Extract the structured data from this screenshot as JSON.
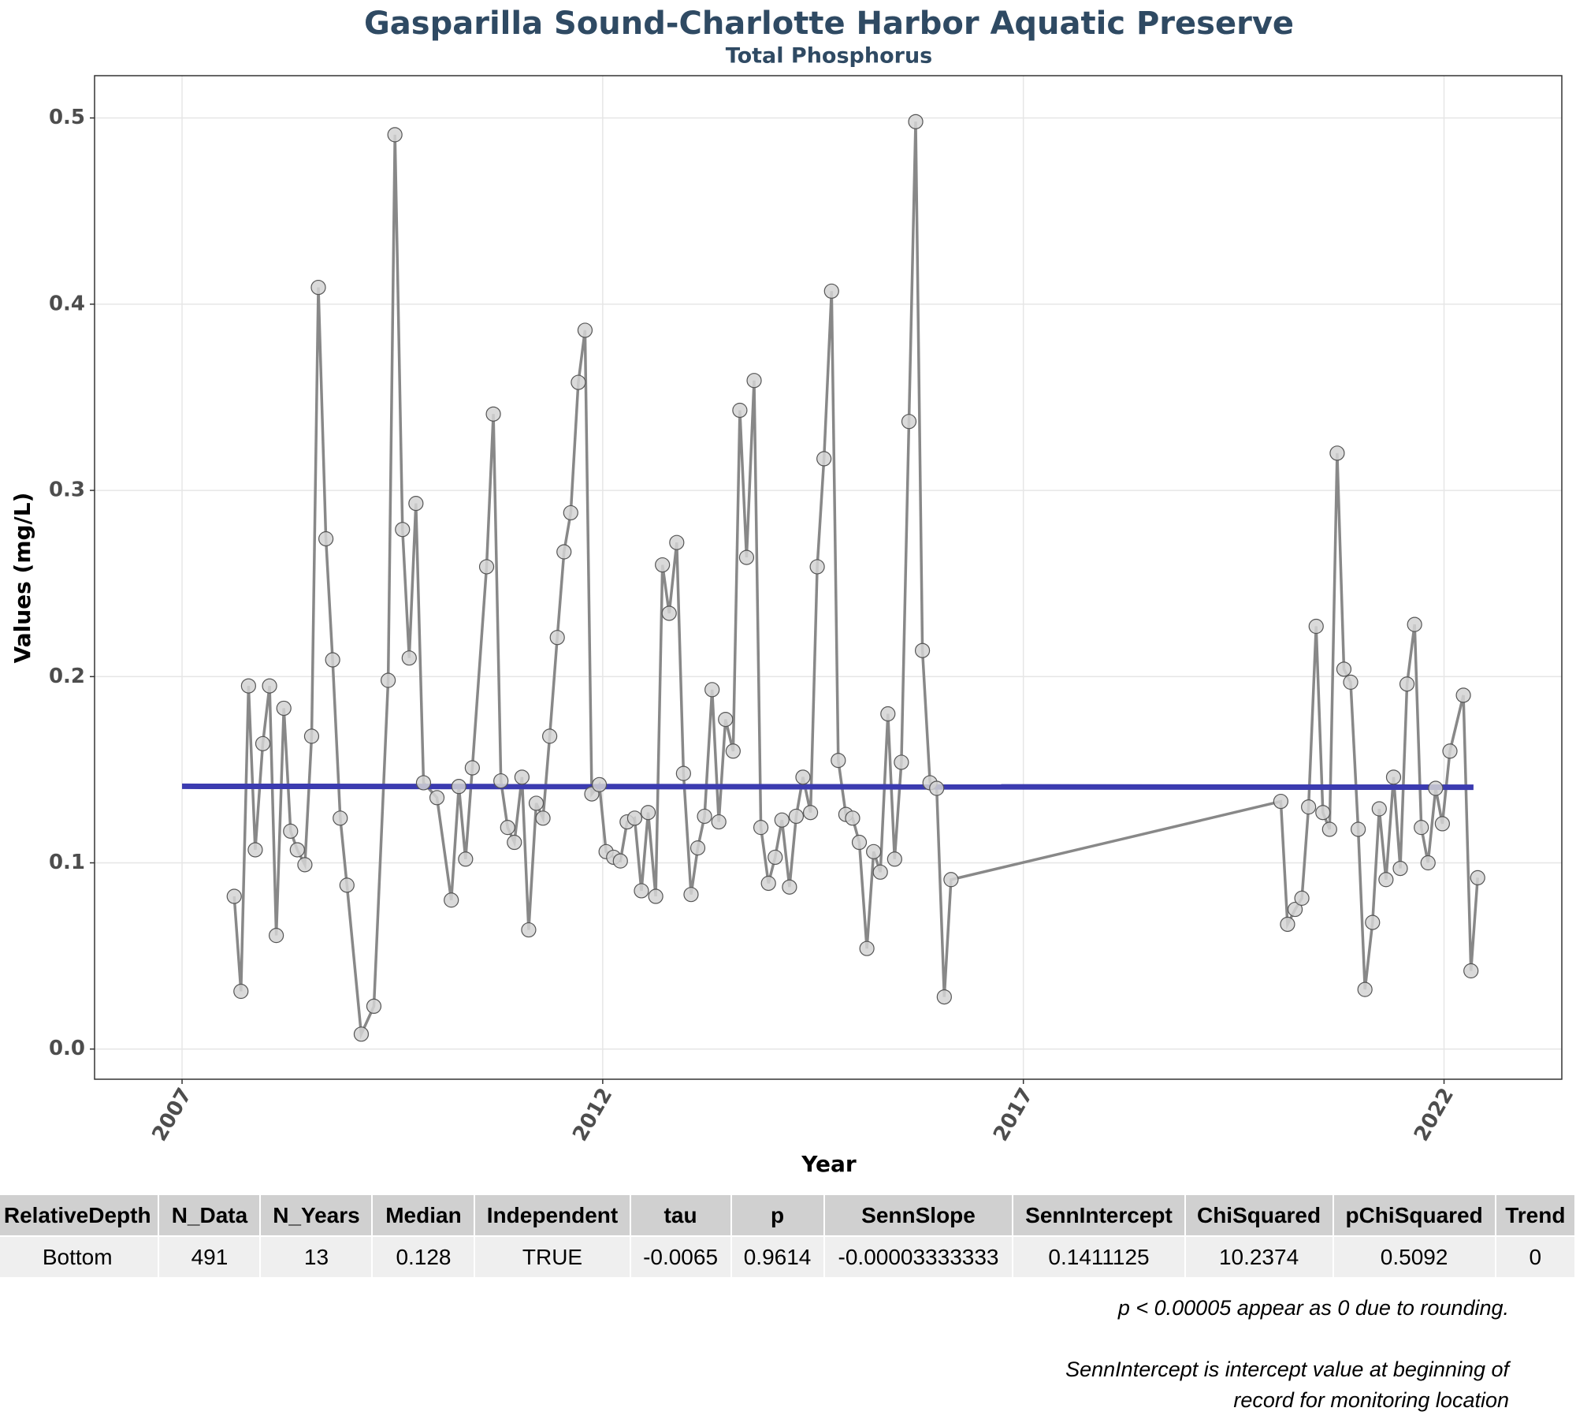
{
  "chart_data": {
    "type": "line",
    "title": "Gasparilla Sound-Charlotte Harbor Aquatic Preserve",
    "subtitle": "Total Phosphorus",
    "x_label": "Year",
    "y_label": "Values (mg/L)",
    "xlim": [
      2005.96,
      2023.4
    ],
    "xticks": [
      2007,
      2012,
      2017,
      2022
    ],
    "ylim": [
      -0.0162,
      0.5227
    ],
    "yticks": [
      {
        "value": 0,
        "label": "0.0"
      },
      0.1,
      0.2,
      0.3,
      0.4,
      0.5
    ],
    "grid": true,
    "series": [
      {
        "color": "#888888",
        "x": [
          2007.62,
          2007.7,
          2007.79,
          2007.87,
          2007.96,
          2008.04,
          2008.12,
          2008.21,
          2008.29,
          2008.37,
          2008.46,
          2008.54,
          2008.62,
          2008.71,
          2008.79,
          2008.88,
          2008.96,
          2009.13,
          2009.28,
          2009.45,
          2009.53,
          2009.62,
          2009.7,
          2009.78,
          2009.87,
          2010.03,
          2010.2,
          2010.29,
          2010.37,
          2010.45,
          2010.62,
          2010.7,
          2010.79,
          2010.87,
          2010.95,
          2011.04,
          2011.12,
          2011.21,
          2011.29,
          2011.37,
          2011.46,
          2011.54,
          2011.62,
          2011.71,
          2011.79,
          2011.87,
          2011.96,
          2012.04,
          2012.13,
          2012.21,
          2012.29,
          2012.38,
          2012.46,
          2012.54,
          2012.63,
          2012.71,
          2012.79,
          2012.88,
          2012.96,
          2013.05,
          2013.13,
          2013.21,
          2013.3,
          2013.38,
          2013.46,
          2013.55,
          2013.63,
          2013.71,
          2013.8,
          2013.88,
          2013.97,
          2014.05,
          2014.13,
          2014.22,
          2014.3,
          2014.38,
          2014.47,
          2014.55,
          2014.63,
          2014.72,
          2014.8,
          2014.89,
          2014.97,
          2015.05,
          2015.14,
          2015.22,
          2015.3,
          2015.39,
          2015.47,
          2015.55,
          2015.64,
          2015.72,
          2015.8,
          2015.89,
          2015.97,
          2016.06,
          2016.14,
          2020.06,
          2020.14,
          2020.23,
          2020.31,
          2020.39,
          2020.48,
          2020.56,
          2020.64,
          2020.73,
          2020.81,
          2020.89,
          2020.98,
          2021.06,
          2021.15,
          2021.23,
          2021.31,
          2021.4,
          2021.48,
          2021.56,
          2021.65,
          2021.73,
          2021.81,
          2021.9,
          2021.98,
          2022.07,
          2022.23,
          2022.32,
          2022.4
        ],
        "values": [
          0.082,
          0.031,
          0.195,
          0.107,
          0.164,
          0.195,
          0.061,
          0.183,
          0.117,
          0.107,
          0.099,
          0.168,
          0.409,
          0.274,
          0.209,
          0.124,
          0.088,
          0.008,
          0.023,
          0.198,
          0.491,
          0.279,
          0.21,
          0.293,
          0.143,
          0.135,
          0.08,
          0.141,
          0.102,
          0.151,
          0.259,
          0.341,
          0.144,
          0.119,
          0.111,
          0.146,
          0.064,
          0.132,
          0.124,
          0.168,
          0.221,
          0.267,
          0.288,
          0.358,
          0.386,
          0.137,
          0.142,
          0.106,
          0.103,
          0.101,
          0.122,
          0.124,
          0.085,
          0.127,
          0.082,
          0.26,
          0.234,
          0.272,
          0.148,
          0.083,
          0.108,
          0.125,
          0.193,
          0.122,
          0.177,
          0.16,
          0.343,
          0.264,
          0.359,
          0.119,
          0.089,
          0.103,
          0.123,
          0.087,
          0.125,
          0.146,
          0.127,
          0.259,
          0.317,
          0.407,
          0.155,
          0.126,
          0.124,
          0.111,
          0.054,
          0.106,
          0.095,
          0.18,
          0.102,
          0.154,
          0.337,
          0.498,
          0.214,
          0.143,
          0.14,
          0.028,
          0.091,
          0.133,
          0.067,
          0.075,
          0.081,
          0.13,
          0.227,
          0.127,
          0.118,
          0.32,
          0.204,
          0.197,
          0.118,
          0.032,
          0.068,
          0.129,
          0.091,
          0.146,
          0.097,
          0.196,
          0.228,
          0.119,
          0.1,
          0.14,
          0.121,
          0.16,
          0.19,
          0.042,
          0.092
        ]
      }
    ],
    "trend": {
      "color": "#3b3bb0",
      "x": [
        2007.0,
        2022.35
      ],
      "values": [
        0.1411,
        0.1406
      ]
    }
  },
  "table": {
    "columns": [
      "RelativeDepth",
      "N_Data",
      "N_Years",
      "Median",
      "Independent",
      "tau",
      "p",
      "SennSlope",
      "SennIntercept",
      "ChiSquared",
      "pChiSquared",
      "Trend"
    ],
    "rows": [
      [
        "Bottom",
        "491",
        "13",
        "0.128",
        "TRUE",
        "-0.0065",
        "0.9614",
        "-0.00003333333",
        "0.1411125",
        "10.2374",
        "0.5092",
        "0"
      ]
    ]
  },
  "notes": [
    "p < 0.00005 appear as 0 due to rounding.",
    "SennIntercept is intercept value at beginning of record for monitoring location"
  ]
}
